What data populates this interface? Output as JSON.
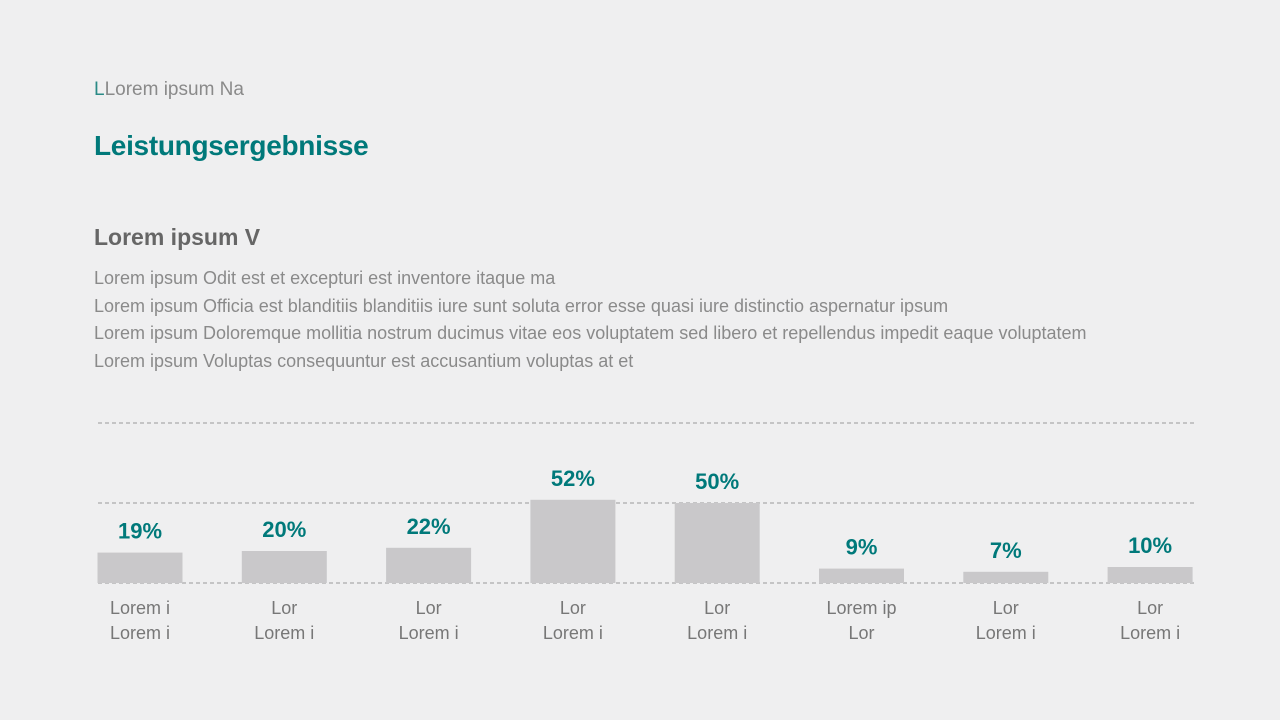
{
  "eyebrow_mark": "L",
  "eyebrow": "Lorem ipsum Na",
  "title": "Leistungsergebnisse",
  "subheading": "Lorem ipsum V",
  "paragraphs": [
    "Lorem ipsum Odit est et excepturi est inventore itaque ma",
    "Lorem ipsum Officia est blanditiis blanditiis iure sunt soluta error esse quasi iure distinctio aspernatur ipsum",
    "Lorem ipsum Doloremque mollitia nostrum ducimus vitae eos voluptatem sed libero et repellendus impedit eaque voluptatem",
    "Lorem ipsum Voluptas consequuntur est accusantium voluptas at et"
  ],
  "chart_data": {
    "type": "bar",
    "categories": [
      "Lorem i\nLorem i",
      "Lor\nLorem i",
      "Lor\nLorem i",
      "Lor\nLorem i",
      "Lor\nLorem i",
      "Lorem ip\nLor",
      "Lor\nLorem i",
      "Lor\nLorem i"
    ],
    "values": [
      19,
      20,
      22,
      52,
      50,
      9,
      7,
      10
    ],
    "value_labels": [
      "19%",
      "20%",
      "22%",
      "52%",
      "50%",
      "9%",
      "7%",
      "10%"
    ],
    "color": "#c9c8ca",
    "label_color": "#00797a",
    "ylim": [
      0,
      100
    ],
    "yticks": [
      0,
      50,
      100
    ],
    "grid": true
  }
}
